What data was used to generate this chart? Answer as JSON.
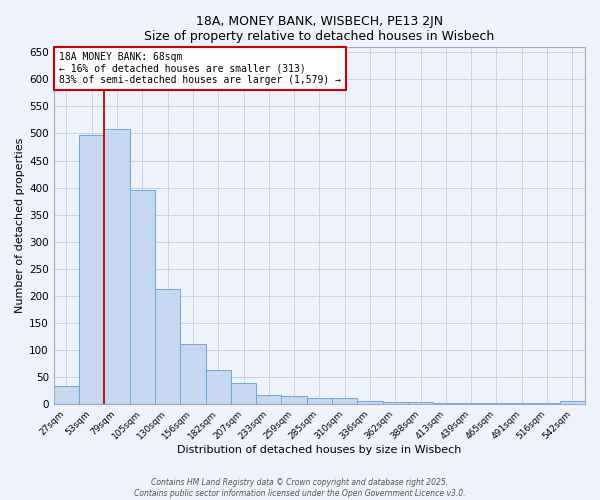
{
  "title1": "18A, MONEY BANK, WISBECH, PE13 2JN",
  "title2": "Size of property relative to detached houses in Wisbech",
  "xlabel": "Distribution of detached houses by size in Wisbech",
  "ylabel": "Number of detached properties",
  "categories": [
    "27sqm",
    "53sqm",
    "79sqm",
    "105sqm",
    "130sqm",
    "156sqm",
    "182sqm",
    "207sqm",
    "233sqm",
    "259sqm",
    "285sqm",
    "310sqm",
    "336sqm",
    "362sqm",
    "388sqm",
    "413sqm",
    "439sqm",
    "465sqm",
    "491sqm",
    "516sqm",
    "542sqm"
  ],
  "values": [
    33,
    498,
    508,
    395,
    213,
    110,
    62,
    38,
    17,
    15,
    11,
    10,
    5,
    4,
    3,
    1,
    1,
    1,
    1,
    1,
    5
  ],
  "bar_color": "#c5d8ef",
  "bar_edge_color": "#6aaad4",
  "ylim": [
    0,
    660
  ],
  "yticks": [
    0,
    50,
    100,
    150,
    200,
    250,
    300,
    350,
    400,
    450,
    500,
    550,
    600,
    650
  ],
  "red_line_x": 1.5,
  "property_label": "18A MONEY BANK: 68sqm",
  "annotation_line1": "← 16% of detached houses are smaller (313)",
  "annotation_line2": "83% of semi-detached houses are larger (1,579) →",
  "red_line_color": "#cc0000",
  "annotation_box_color": "#ffffff",
  "annotation_box_edge": "#cc0000",
  "footer1": "Contains HM Land Registry data © Crown copyright and database right 2025.",
  "footer2": "Contains public sector information licensed under the Open Government Licence v3.0.",
  "bg_color": "#eef2fa",
  "grid_color": "#c8d0e8"
}
